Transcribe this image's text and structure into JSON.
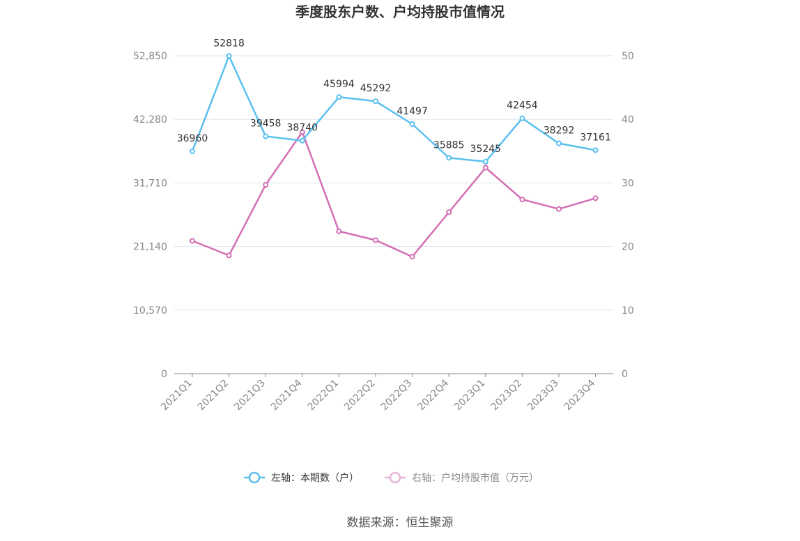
{
  "colors": {
    "left_series": "#5bc0ef",
    "right_series": "#d46fb4",
    "grid": "#dde6f0",
    "axis": "#888888"
  },
  "chart_data": {
    "type": "line",
    "title": "季度股东户数、户均持股市值情况",
    "categories": [
      "2021Q1",
      "2021Q2",
      "2021Q3",
      "2021Q4",
      "2022Q1",
      "2022Q2",
      "2022Q3",
      "2022Q4",
      "2023Q1",
      "2023Q2",
      "2023Q3",
      "2023Q4"
    ],
    "left_axis": {
      "ticks": [
        "0",
        "10,570",
        "21,140",
        "31,710",
        "42,280",
        "52,850"
      ],
      "range": [
        0,
        52850
      ]
    },
    "right_axis": {
      "ticks": [
        "0",
        "10",
        "20",
        "30",
        "40",
        "50"
      ],
      "range": [
        0,
        50
      ]
    },
    "series": [
      {
        "name": "左轴：本期数（户）",
        "axis": "left",
        "values": [
          36960,
          52818,
          39458,
          38740,
          45994,
          45292,
          41497,
          35885,
          35245,
          42454,
          38292,
          37161
        ],
        "labels": [
          "36960",
          "52818",
          "39458",
          "38740",
          "45994",
          "45292",
          "41497",
          "35885",
          "35245",
          "42454",
          "38292",
          "37161"
        ]
      },
      {
        "name": "右轴：户均持股市值（万元）",
        "axis": "right",
        "values": [
          20.9,
          18.6,
          29.7,
          38.0,
          22.4,
          21.0,
          18.4,
          25.4,
          32.4,
          27.4,
          25.9,
          27.6
        ]
      }
    ],
    "grid": true,
    "legend_position": "bottom"
  },
  "source": "数据来源：恒生聚源"
}
